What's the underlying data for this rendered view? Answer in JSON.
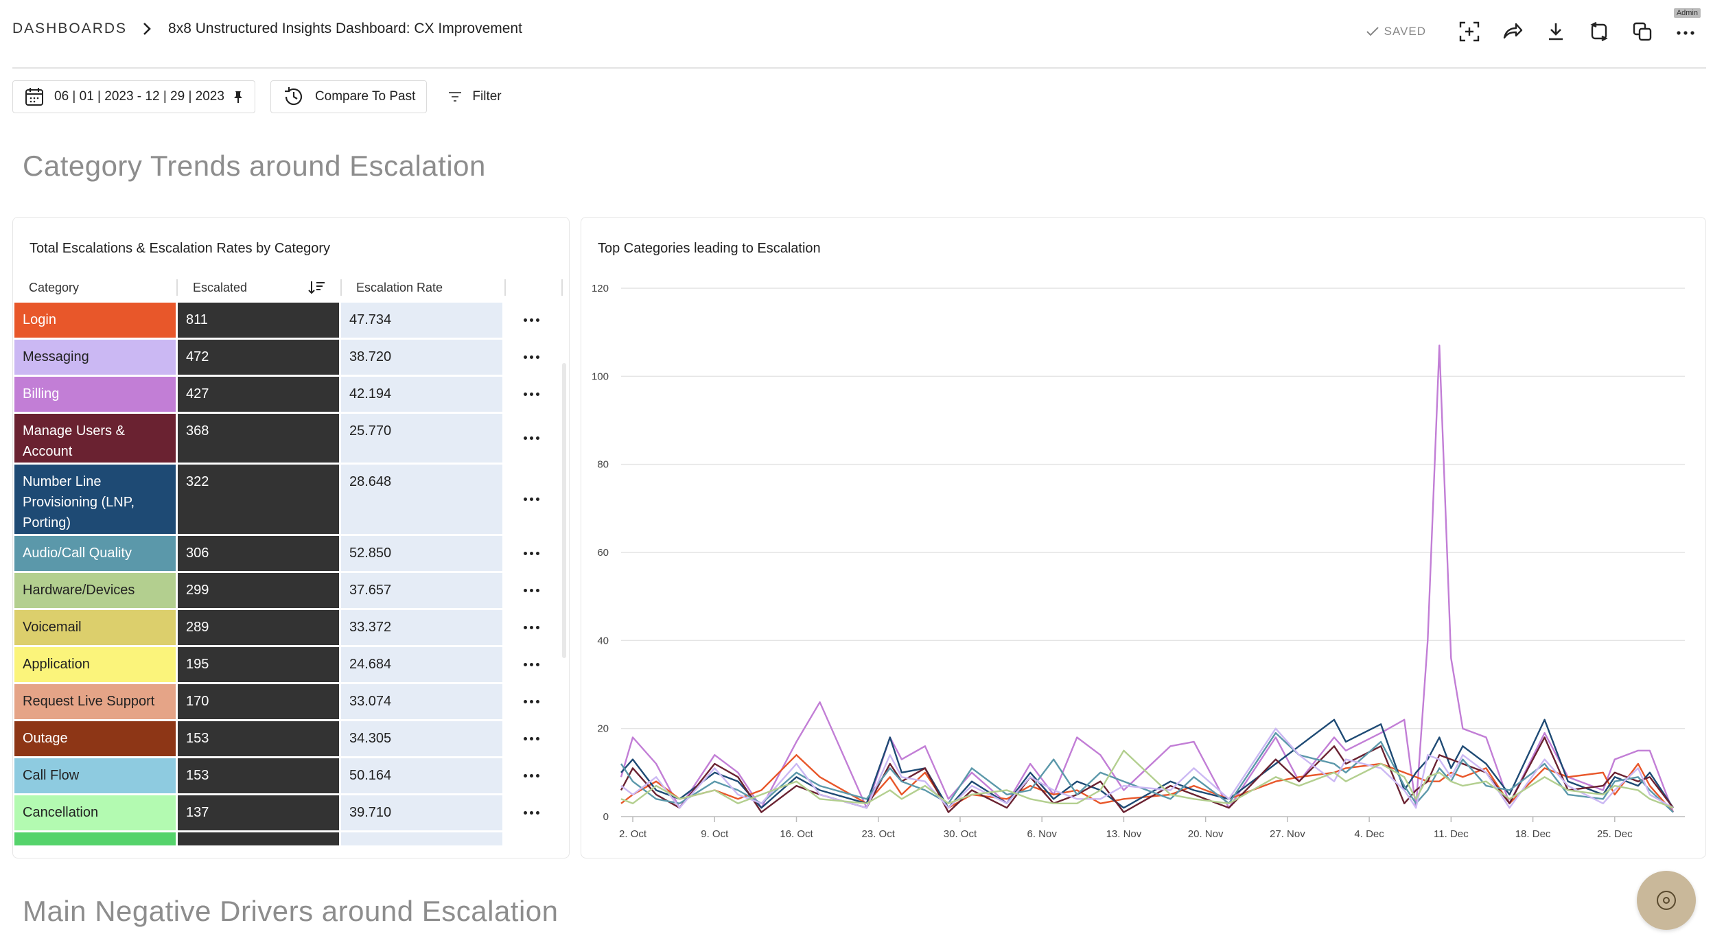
{
  "breadcrumb": {
    "root": "DASHBOARDS",
    "current": "8x8 Unstructured Insights Dashboard: CX Improvement"
  },
  "header": {
    "saved_label": "SAVED",
    "admin_label": "Admin",
    "icons": [
      "fullscreen-icon",
      "share-icon",
      "download-icon",
      "refresh-icon",
      "duplicate-icon",
      "more-icon"
    ]
  },
  "toolbar": {
    "date_range": "06 | 01 | 2023 - 12 | 29 | 2023",
    "compare_label": "Compare To Past",
    "filter_label": "Filter"
  },
  "sections": {
    "section1_title": "Category Trends around Escalation",
    "section2_title": "Main Negative Drivers around Escalation"
  },
  "table": {
    "title": "Total Escalations & Escalation Rates by Category",
    "columns": {
      "category": "Category",
      "escalated": "Escalated",
      "rate": "Escalation Rate"
    },
    "rows": [
      {
        "label": "Login",
        "escalated": "811",
        "rate": "47.734",
        "color": "#e8572a",
        "text": "#ffffff",
        "lines": 1
      },
      {
        "label": "Messaging",
        "escalated": "472",
        "rate": "38.720",
        "color": "#cbb8f3",
        "text": "#222222",
        "lines": 1
      },
      {
        "label": "Billing",
        "escalated": "427",
        "rate": "42.194",
        "color": "#c27ed6",
        "text": "#ffffff",
        "lines": 1
      },
      {
        "label": "Manage Users & Account",
        "escalated": "368",
        "rate": "25.770",
        "color": "#6a2231",
        "text": "#ffffff",
        "lines": 2
      },
      {
        "label": "Number Line Provisioning (LNP, Porting)",
        "escalated": "322",
        "rate": "28.648",
        "color": "#1e4a74",
        "text": "#ffffff",
        "lines": 3
      },
      {
        "label": "Audio/Call Quality",
        "escalated": "306",
        "rate": "52.850",
        "color": "#5b98aa",
        "text": "#ffffff",
        "lines": 1
      },
      {
        "label": "Hardware/Devices",
        "escalated": "299",
        "rate": "37.657",
        "color": "#b3cf8f",
        "text": "#222222",
        "lines": 1
      },
      {
        "label": "Voicemail",
        "escalated": "289",
        "rate": "33.372",
        "color": "#dccf6c",
        "text": "#222222",
        "lines": 1
      },
      {
        "label": "Application",
        "escalated": "195",
        "rate": "24.684",
        "color": "#fbf47b",
        "text": "#222222",
        "lines": 1
      },
      {
        "label": "Request Live Support",
        "escalated": "170",
        "rate": "33.074",
        "color": "#e5a487",
        "text": "#222222",
        "lines": 1
      },
      {
        "label": "Outage",
        "escalated": "153",
        "rate": "34.305",
        "color": "#8d3616",
        "text": "#ffffff",
        "lines": 1
      },
      {
        "label": "Call Flow",
        "escalated": "153",
        "rate": "50.164",
        "color": "#8ecbe0",
        "text": "#222222",
        "lines": 1
      },
      {
        "label": "Cancellation",
        "escalated": "137",
        "rate": "39.710",
        "color": "#b3fab1",
        "text": "#222222",
        "lines": 1
      },
      {
        "label": "",
        "escalated": "",
        "rate": "",
        "color": "#55d36b",
        "text": "#222222",
        "lines": 1
      }
    ]
  },
  "chart_data": {
    "type": "line",
    "title": "Top Categories leading to Escalation",
    "xlabel": "",
    "ylabel": "",
    "ylim": [
      0,
      120
    ],
    "yticks": [
      0,
      20,
      40,
      60,
      80,
      100,
      120
    ],
    "xticks": [
      {
        "label": "2. Oct",
        "x": 1
      },
      {
        "label": "9. Oct",
        "x": 8
      },
      {
        "label": "16. Oct",
        "x": 15
      },
      {
        "label": "23. Oct",
        "x": 22
      },
      {
        "label": "30. Oct",
        "x": 29
      },
      {
        "label": "6. Nov",
        "x": 36
      },
      {
        "label": "13. Nov",
        "x": 43
      },
      {
        "label": "20. Nov",
        "x": 50
      },
      {
        "label": "27. Nov",
        "x": 57
      },
      {
        "label": "4. Dec",
        "x": 64
      },
      {
        "label": "11. Dec",
        "x": 71
      },
      {
        "label": "18. Dec",
        "x": 78
      },
      {
        "label": "25. Dec",
        "x": 85
      }
    ],
    "x": [
      0,
      1,
      3,
      5,
      8,
      10,
      12,
      15,
      17,
      21,
      23,
      24,
      26,
      28,
      30,
      33,
      35,
      37,
      39,
      41,
      43,
      47,
      49,
      52,
      56,
      58,
      61,
      62,
      65,
      67,
      68,
      69,
      70,
      71,
      72,
      74,
      76,
      79,
      81,
      84,
      85,
      87,
      88,
      90
    ],
    "series": [
      {
        "name": "Billing",
        "color": "#c27ed6",
        "values": [
          9,
          18,
          12,
          2,
          14,
          10,
          2,
          17,
          26,
          2,
          18,
          13,
          16,
          4,
          10,
          3,
          12,
          5,
          18,
          14,
          6,
          16,
          17,
          2,
          18,
          8,
          18,
          15,
          19,
          22,
          2,
          40,
          107,
          36,
          20,
          18,
          3,
          19,
          9,
          6,
          13,
          15,
          15,
          1
        ]
      },
      {
        "name": "Login",
        "color": "#e8572a",
        "values": [
          3,
          5,
          8,
          4,
          6,
          4,
          6,
          14,
          9,
          3,
          9,
          5,
          10,
          2,
          5,
          4,
          7,
          5,
          6,
          3,
          4,
          5,
          7,
          4,
          8,
          9,
          10,
          11,
          12,
          10,
          9,
          8,
          8,
          10,
          9,
          11,
          3,
          11,
          9,
          10,
          5,
          12,
          7,
          1
        ]
      },
      {
        "name": "Number Line Provisioning",
        "color": "#1e4a74",
        "values": [
          10,
          13,
          6,
          4,
          10,
          8,
          2,
          9,
          6,
          3,
          18,
          10,
          11,
          2,
          8,
          3,
          10,
          4,
          8,
          6,
          2,
          8,
          6,
          4,
          12,
          16,
          22,
          17,
          21,
          6,
          10,
          13,
          18,
          11,
          16,
          12,
          5,
          22,
          8,
          5,
          9,
          7,
          10,
          2
        ]
      },
      {
        "name": "Manage Users & Account",
        "color": "#6a2231",
        "values": [
          6,
          11,
          5,
          2,
          12,
          9,
          1,
          7,
          5,
          2,
          12,
          8,
          11,
          1,
          6,
          2,
          9,
          3,
          5,
          8,
          1,
          7,
          5,
          2,
          13,
          8,
          16,
          12,
          16,
          3,
          6,
          8,
          14,
          13,
          12,
          10,
          3,
          18,
          6,
          7,
          10,
          8,
          9,
          2
        ]
      },
      {
        "name": "Audio/Call Quality",
        "color": "#5b98aa",
        "values": [
          12,
          8,
          4,
          3,
          8,
          6,
          3,
          10,
          7,
          4,
          11,
          8,
          6,
          3,
          11,
          5,
          6,
          13,
          5,
          10,
          8,
          4,
          9,
          3,
          19,
          14,
          12,
          10,
          17,
          7,
          3,
          6,
          11,
          8,
          13,
          7,
          6,
          12,
          5,
          4,
          8,
          9,
          6,
          1
        ]
      },
      {
        "name": "Messaging",
        "color": "#cbb8f3",
        "values": [
          7,
          5,
          9,
          2,
          11,
          5,
          3,
          12,
          5,
          2,
          14,
          9,
          8,
          2,
          7,
          3,
          9,
          6,
          4,
          4,
          7,
          6,
          11,
          4,
          20,
          14,
          8,
          13,
          11,
          6,
          2,
          14,
          13,
          9,
          14,
          10,
          2,
          13,
          7,
          3,
          6,
          11,
          5,
          2
        ]
      },
      {
        "name": "Hardware/Devices",
        "color": "#b3cf8f",
        "values": [
          4,
          3,
          7,
          4,
          6,
          3,
          5,
          8,
          4,
          3,
          6,
          4,
          7,
          3,
          5,
          6,
          4,
          3,
          3,
          6,
          15,
          5,
          4,
          3,
          9,
          7,
          10,
          8,
          12,
          9,
          4,
          9,
          10,
          8,
          7,
          8,
          4,
          9,
          6,
          5,
          7,
          6,
          4,
          2
        ]
      }
    ]
  }
}
